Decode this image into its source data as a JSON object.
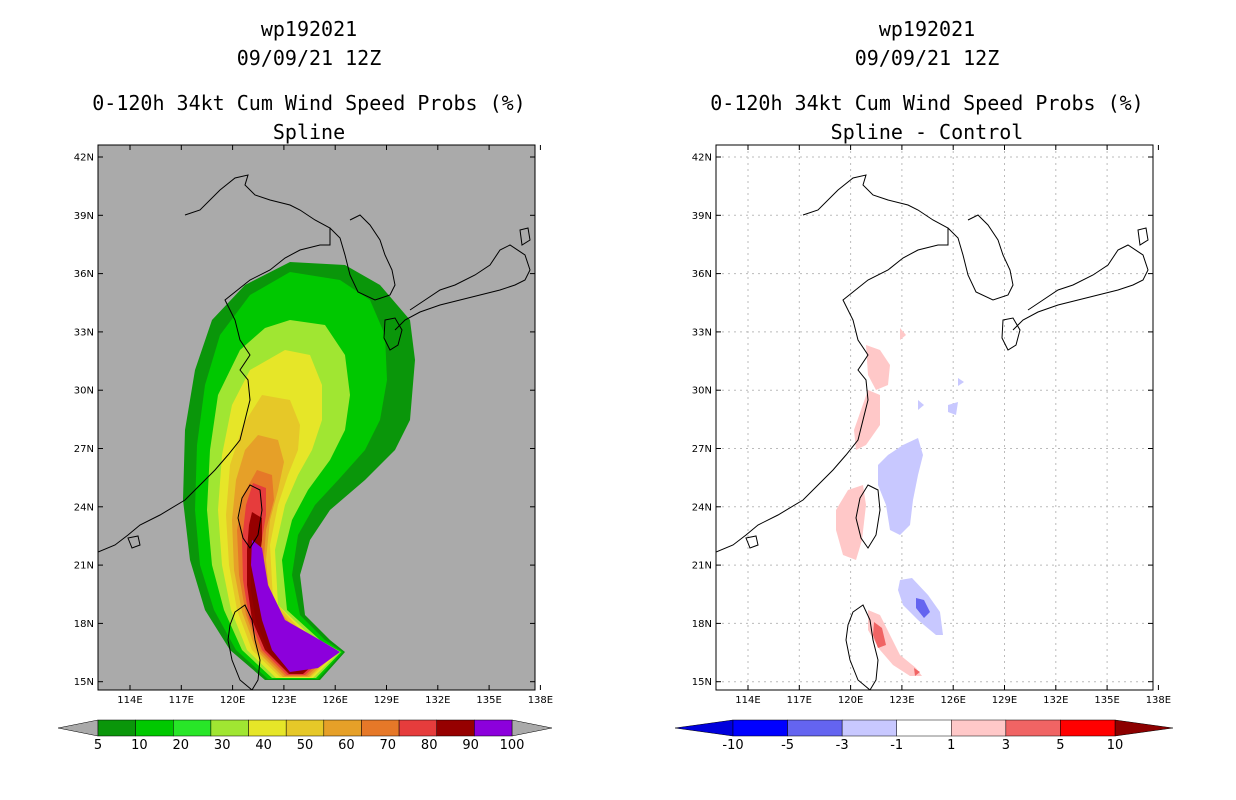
{
  "left_panel": {
    "title_line1": "wp192021",
    "title_line2": "09/09/21 12Z",
    "title_line3": "0-120h 34kt Cum Wind Speed Probs (%)",
    "title_line4": "Spline",
    "lat_labels": [
      "42N",
      "39N",
      "36N",
      "33N",
      "30N",
      "27N",
      "24N",
      "21N",
      "18N",
      "15N"
    ],
    "lon_labels": [
      "114E",
      "117E",
      "120E",
      "123E",
      "126E",
      "129E",
      "132E",
      "135E",
      "138E"
    ],
    "colorbar_labels": [
      "5",
      "10",
      "20",
      "30",
      "40",
      "50",
      "60",
      "70",
      "80",
      "90",
      "100"
    ],
    "colorbar_colors": [
      "#0a960a",
      "#00c800",
      "#28e628",
      "#a0e632",
      "#e6e628",
      "#e6c828",
      "#e6a028",
      "#e67828",
      "#e63c3c",
      "#960000",
      "#8c00dc"
    ]
  },
  "right_panel": {
    "title_line1": "wp192021",
    "title_line2": "09/09/21 12Z",
    "title_line3": "0-120h 34kt Cum Wind Speed Probs (%)",
    "title_line4": "Spline - Control",
    "lat_labels": [
      "42N",
      "39N",
      "36N",
      "33N",
      "30N",
      "27N",
      "24N",
      "21N",
      "18N",
      "15N"
    ],
    "lon_labels": [
      "114E",
      "117E",
      "120E",
      "123E",
      "126E",
      "129E",
      "132E",
      "135E",
      "138E"
    ],
    "colorbar_labels": [
      "-10",
      "-5",
      "-3",
      "-1",
      "1",
      "3",
      "5",
      "10"
    ],
    "colorbar_colors": [
      "#0000dc",
      "#0000ff",
      "#6464f0",
      "#c8c8ff",
      "#ffffff",
      "#ffc8c8",
      "#f06464",
      "#ff0000",
      "#8c0000"
    ]
  },
  "colors": {
    "land_background": "#aaaaaa",
    "coast": "#000000"
  }
}
